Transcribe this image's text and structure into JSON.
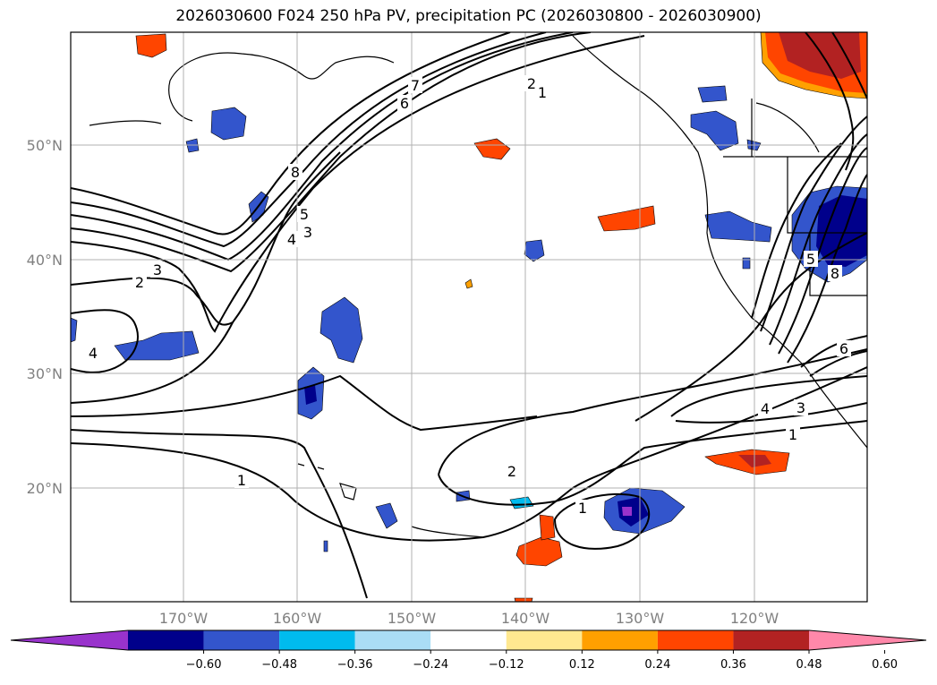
{
  "title": "2026030600 F024 250 hPa PV, precipitation PC (2026030800 - 2026030900)",
  "map": {
    "lon_labels": [
      "170°W",
      "160°W",
      "150°W",
      "140°W",
      "130°W",
      "120°W"
    ],
    "lat_labels": [
      "50°N",
      "40°N",
      "30°N",
      "20°N"
    ],
    "contour_labels": [
      "7",
      "6",
      "8",
      "5",
      "4",
      "3",
      "3",
      "2",
      "4",
      "2",
      "1",
      "1",
      "2",
      "1",
      "4",
      "3",
      "1",
      "6",
      "8",
      "5"
    ]
  },
  "colorbar": {
    "ticks": [
      "−0.60",
      "−0.48",
      "−0.36",
      "−0.24",
      "−0.12",
      "0.12",
      "0.24",
      "0.36",
      "0.48",
      "0.60"
    ],
    "colors": [
      "#9933cc",
      "#00008b",
      "#3355cc",
      "#00bbee",
      "#aaddf5",
      "#ffffff",
      "#ffe890",
      "#ffa000",
      "#ff4500",
      "#b22222",
      "#ff88aa"
    ]
  }
}
